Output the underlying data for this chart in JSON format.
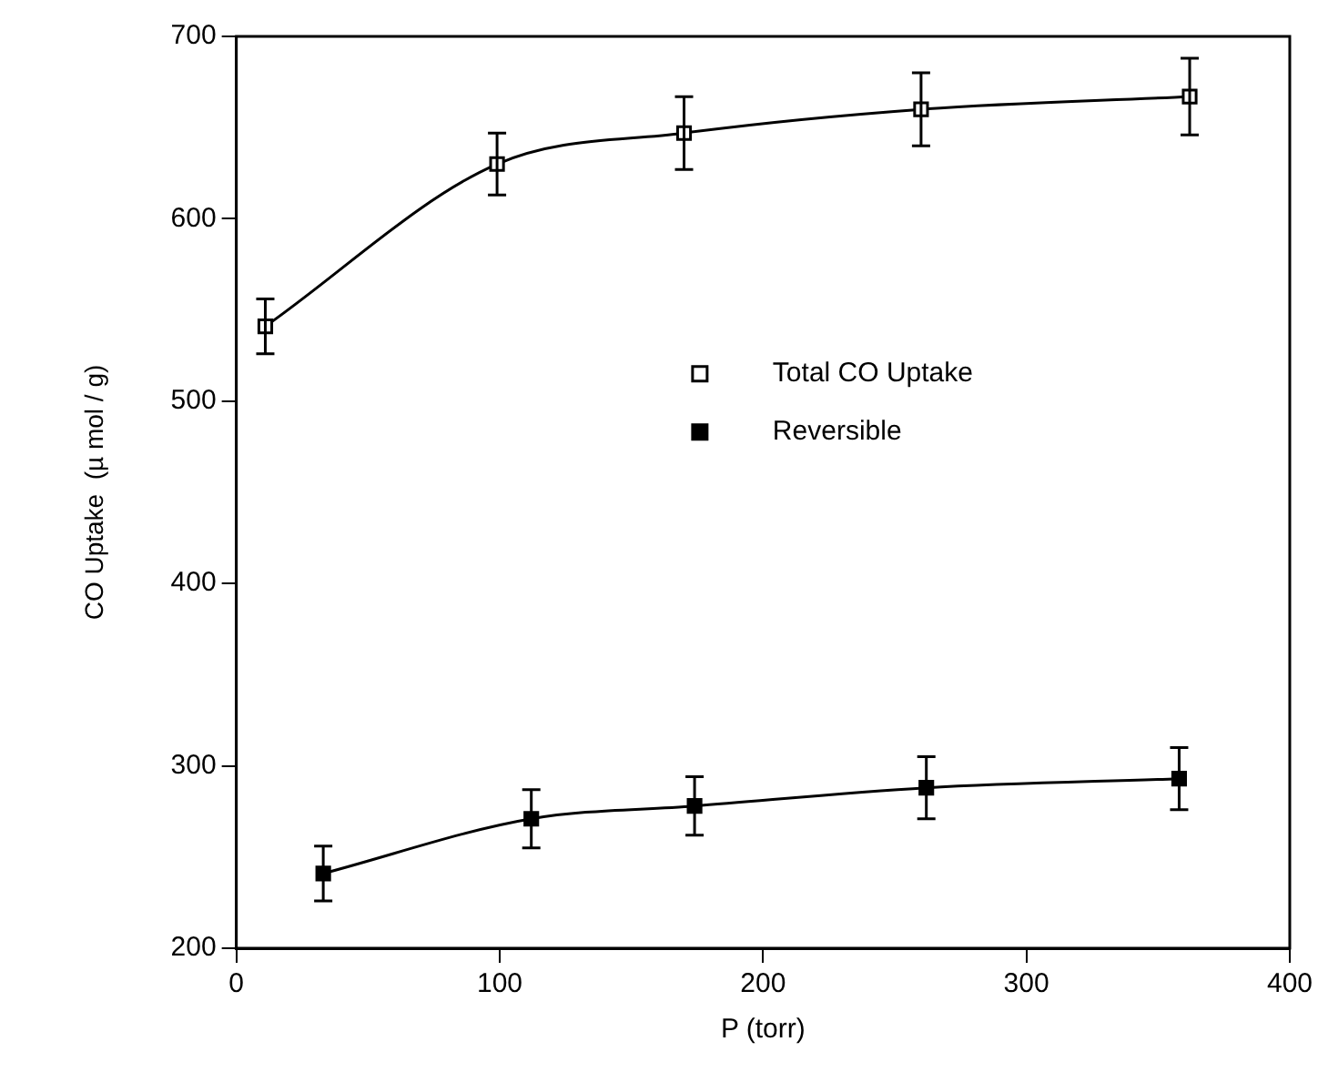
{
  "chart_data": {
    "type": "line",
    "xlabel": "P (torr)",
    "ylabel": "CO Uptake  (µ mol / g)",
    "xlim": [
      0,
      400
    ],
    "xticks": [
      0,
      100,
      200,
      300,
      400
    ],
    "ylim": [
      200,
      700
    ],
    "yticks": [
      200,
      300,
      400,
      500,
      600,
      700
    ],
    "grid": false,
    "legend": "right",
    "marker": "square",
    "line_style": "solid",
    "series": [
      {
        "name": "Total CO Uptake",
        "color": "#000000",
        "x": [
          11,
          99,
          170,
          260,
          362
        ],
        "values": [
          541,
          630,
          647,
          660,
          667
        ],
        "errors": [
          15,
          17,
          20,
          20,
          21
        ]
      },
      {
        "name": "Reversible",
        "color": "#000000",
        "x": [
          33,
          112,
          174,
          262,
          358
        ],
        "values": [
          241,
          271,
          278,
          288,
          293
        ],
        "errors": [
          15,
          16,
          16,
          17,
          17
        ]
      }
    ]
  }
}
